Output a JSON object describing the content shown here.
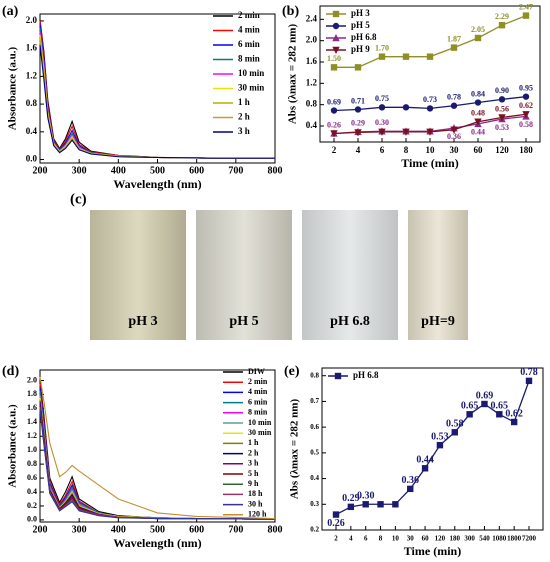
{
  "chart_data": [
    {
      "type": "line",
      "panel": "(a)",
      "x_label": "Wavelength (nm)",
      "y_label": "Absorbance (a.u.)",
      "x": [
        200,
        210,
        220,
        235,
        250,
        265,
        282,
        300,
        330,
        400,
        500,
        650,
        800
      ],
      "xlim": [
        200,
        800
      ],
      "xticks": [
        200,
        300,
        400,
        500,
        600,
        700,
        800
      ],
      "ylim": [
        -0.05,
        2.1
      ],
      "yticks": [
        {
          "value": 0,
          "label": "0.0"
        },
        0.4,
        0.8,
        1.2,
        1.6,
        {
          "value": 2,
          "label": "2.0"
        }
      ],
      "legend": "upper right",
      "series": [
        {
          "name": "2 min",
          "color": "#000000",
          "values": [
            2.02,
            1.55,
            0.85,
            0.3,
            0.16,
            0.3,
            0.55,
            0.25,
            0.12,
            0.06,
            0.03,
            0.02,
            0.02
          ]
        },
        {
          "name": "4 min",
          "color": "#ff0000",
          "values": [
            2.0,
            1.5,
            0.8,
            0.28,
            0.15,
            0.27,
            0.48,
            0.22,
            0.11,
            0.06,
            0.03,
            0.02,
            0.02
          ]
        },
        {
          "name": "6 min",
          "color": "#0000ff",
          "values": [
            1.95,
            1.45,
            0.75,
            0.26,
            0.14,
            0.24,
            0.42,
            0.2,
            0.1,
            0.05,
            0.03,
            0.02,
            0.02
          ]
        },
        {
          "name": "8 min",
          "color": "#008080",
          "values": [
            1.9,
            1.4,
            0.72,
            0.25,
            0.13,
            0.22,
            0.38,
            0.18,
            0.1,
            0.05,
            0.03,
            0.02,
            0.02
          ]
        },
        {
          "name": "10 min",
          "color": "#ff00ff",
          "values": [
            1.85,
            1.35,
            0.7,
            0.24,
            0.12,
            0.2,
            0.35,
            0.17,
            0.09,
            0.05,
            0.03,
            0.02,
            0.02
          ]
        },
        {
          "name": "30 min",
          "color": "#e6e600",
          "values": [
            1.8,
            1.3,
            0.68,
            0.23,
            0.12,
            0.19,
            0.33,
            0.16,
            0.09,
            0.05,
            0.03,
            0.02,
            0.02
          ]
        },
        {
          "name": "1 h",
          "color": "#b0b000",
          "values": [
            1.75,
            1.25,
            0.65,
            0.22,
            0.11,
            0.18,
            0.31,
            0.15,
            0.09,
            0.05,
            0.03,
            0.02,
            0.02
          ]
        },
        {
          "name": "2 h",
          "color": "#c8a030",
          "values": [
            1.7,
            1.2,
            0.62,
            0.21,
            0.11,
            0.17,
            0.3,
            0.15,
            0.08,
            0.04,
            0.03,
            0.02,
            0.02
          ]
        },
        {
          "name": "3 h",
          "color": "#000080",
          "values": [
            1.65,
            1.15,
            0.6,
            0.2,
            0.1,
            0.16,
            0.28,
            0.14,
            0.08,
            0.04,
            0.03,
            0.02,
            0.02
          ]
        }
      ]
    },
    {
      "type": "line",
      "panel": "(b)",
      "x_label": "Time (min)",
      "y_label": "Abs (λmax = 282 nm)",
      "categories": [
        "2",
        "4",
        "6",
        "8",
        "10",
        "30",
        "60",
        "120",
        "180"
      ],
      "ylim": [
        0.1,
        2.65
      ],
      "yticks": [
        0.4,
        0.8,
        1.2,
        1.6,
        {
          "value": 2,
          "label": "2.0"
        },
        2.4
      ],
      "legend": "upper left",
      "series": [
        {
          "name": "pH 3",
          "color": "#8f8f25",
          "marker": "square",
          "values": [
            1.5,
            1.5,
            1.7,
            1.7,
            1.7,
            1.87,
            2.05,
            2.29,
            2.47
          ],
          "value_labels": [
            "1.50",
            null,
            "1.70",
            null,
            null,
            "1.87",
            "2.05",
            "2.29",
            "2.47"
          ]
        },
        {
          "name": "pH 5",
          "color": "#1a1a70",
          "marker": "circle",
          "values": [
            0.69,
            0.71,
            0.75,
            0.75,
            0.73,
            0.78,
            0.84,
            0.9,
            0.95
          ],
          "value_labels": [
            "0.69",
            "0.71",
            "0.75",
            null,
            "0.73",
            "0.78",
            "0.84",
            "0.90",
            "0.95"
          ]
        },
        {
          "name": "pH 6.8",
          "color": "#8a2a8a",
          "marker": "triangle-up",
          "values": [
            0.26,
            0.29,
            0.3,
            0.3,
            0.3,
            0.36,
            0.44,
            0.53,
            0.58
          ],
          "value_labels": [
            "0.26",
            "0.29",
            "0.30",
            null,
            null,
            "0.36",
            "0.44",
            "0.53",
            "0.58"
          ]
        },
        {
          "name": "pH 9",
          "color": "#7a1020",
          "marker": "triangle-down",
          "values": [
            0.26,
            0.28,
            0.29,
            0.29,
            0.29,
            0.33,
            0.48,
            0.56,
            0.62
          ],
          "value_labels": [
            null,
            null,
            null,
            null,
            null,
            null,
            "0.48",
            "0.56",
            "0.62"
          ]
        }
      ]
    },
    {
      "type": "line",
      "panel": "(d)",
      "x_label": "Wavelength (nm)",
      "y_label": "Absorbance (a.u.)",
      "x": [
        200,
        210,
        225,
        250,
        265,
        282,
        300,
        350,
        400,
        500,
        600,
        800
      ],
      "xlim": [
        200,
        800
      ],
      "xticks": [
        200,
        300,
        400,
        500,
        600,
        700,
        800
      ],
      "ylim": [
        -0.03,
        2.15
      ],
      "yticks": [
        {
          "value": 0,
          "label": "0.0"
        },
        0.2,
        0.4,
        0.6,
        0.8,
        {
          "value": 1,
          "label": "1.0"
        },
        1.2,
        1.4,
        1.6,
        1.8,
        {
          "value": 2,
          "label": "2.0"
        }
      ],
      "legend": "right",
      "series": [
        {
          "name": "DIW",
          "color": "#000000",
          "values": [
            2.0,
            1.5,
            0.6,
            0.25,
            0.4,
            0.62,
            0.3,
            0.12,
            0.06,
            0.03,
            0.02,
            0.01
          ]
        },
        {
          "name": "2 min",
          "color": "#ff0000",
          "values": [
            1.95,
            1.45,
            0.55,
            0.22,
            0.35,
            0.55,
            0.27,
            0.1,
            0.05,
            0.03,
            0.02,
            0.01
          ]
        },
        {
          "name": "4 min",
          "color": "#0000ff",
          "values": [
            1.9,
            1.4,
            0.52,
            0.2,
            0.32,
            0.5,
            0.25,
            0.1,
            0.05,
            0.03,
            0.02,
            0.01
          ]
        },
        {
          "name": "6 min",
          "color": "#008080",
          "values": [
            1.85,
            1.35,
            0.5,
            0.19,
            0.3,
            0.47,
            0.24,
            0.1,
            0.05,
            0.03,
            0.02,
            0.01
          ]
        },
        {
          "name": "8 min",
          "color": "#ff00ff",
          "values": [
            1.8,
            1.3,
            0.48,
            0.18,
            0.28,
            0.44,
            0.22,
            0.09,
            0.05,
            0.03,
            0.02,
            0.01
          ]
        },
        {
          "name": "10 min",
          "color": "#5f9ea0",
          "values": [
            1.78,
            1.28,
            0.46,
            0.17,
            0.27,
            0.42,
            0.21,
            0.09,
            0.05,
            0.03,
            0.02,
            0.01
          ]
        },
        {
          "name": "30 min",
          "color": "#e6e600",
          "values": [
            1.75,
            1.25,
            0.45,
            0.17,
            0.26,
            0.4,
            0.2,
            0.09,
            0.05,
            0.03,
            0.02,
            0.01
          ]
        },
        {
          "name": "1 h",
          "color": "#808000",
          "values": [
            1.72,
            1.22,
            0.44,
            0.16,
            0.25,
            0.38,
            0.19,
            0.08,
            0.04,
            0.03,
            0.02,
            0.01
          ]
        },
        {
          "name": "2 h",
          "color": "#000080",
          "values": [
            1.7,
            1.2,
            0.43,
            0.16,
            0.24,
            0.36,
            0.18,
            0.08,
            0.04,
            0.02,
            0.02,
            0.01
          ]
        },
        {
          "name": "3 h",
          "color": "#800080",
          "values": [
            1.68,
            1.18,
            0.42,
            0.15,
            0.23,
            0.34,
            0.17,
            0.08,
            0.04,
            0.02,
            0.02,
            0.01
          ]
        },
        {
          "name": "5 h",
          "color": "#800000",
          "values": [
            1.65,
            1.15,
            0.41,
            0.15,
            0.22,
            0.32,
            0.16,
            0.07,
            0.04,
            0.02,
            0.02,
            0.01
          ]
        },
        {
          "name": "9 h",
          "color": "#336633",
          "values": [
            1.62,
            1.12,
            0.4,
            0.14,
            0.21,
            0.3,
            0.15,
            0.07,
            0.04,
            0.02,
            0.02,
            0.01
          ]
        },
        {
          "name": "18 h",
          "color": "#993366",
          "values": [
            1.6,
            1.1,
            0.39,
            0.14,
            0.2,
            0.28,
            0.14,
            0.07,
            0.04,
            0.02,
            0.02,
            0.01
          ]
        },
        {
          "name": "30 h",
          "color": "#333399",
          "values": [
            1.58,
            1.08,
            0.38,
            0.13,
            0.19,
            0.26,
            0.13,
            0.06,
            0.03,
            0.02,
            0.02,
            0.01
          ]
        },
        {
          "name": "120 h",
          "color": "#c09030",
          "values": [
            2.05,
            1.7,
            1.1,
            0.62,
            0.68,
            0.78,
            0.7,
            0.5,
            0.3,
            0.1,
            0.05,
            0.02
          ]
        }
      ]
    },
    {
      "type": "line",
      "panel": "(e)",
      "x_label": "Time (min)",
      "y_label": "Abs (λmax = 282 nm)",
      "categories": [
        "2",
        "4",
        "6",
        "8",
        "10",
        "30",
        "60",
        "120",
        "180",
        "300",
        "540",
        "1080",
        "1800",
        "7200"
      ],
      "ylim": [
        0.2,
        0.83
      ],
      "yticks": [
        0.2,
        0.3,
        0.4,
        0.5,
        0.6,
        0.7,
        0.8
      ],
      "legend": "upper left",
      "series": [
        {
          "name": "pH 6.8",
          "color": "#1a1a70",
          "marker": "square",
          "values": [
            0.26,
            0.29,
            0.3,
            0.3,
            0.3,
            0.36,
            0.44,
            0.53,
            0.58,
            0.65,
            0.69,
            0.65,
            0.62,
            0.78
          ],
          "value_labels": [
            "0.26",
            "0.29",
            "0.30",
            null,
            null,
            "0.36",
            "0.44",
            "0.53",
            "0.58",
            "0.65",
            "0.69",
            "0.65",
            "0.62",
            "0.78"
          ]
        }
      ]
    }
  ],
  "photo": {
    "panel": "(c)",
    "labels": [
      "pH 3",
      "pH 5",
      "pH 6.8",
      "pH=9"
    ]
  }
}
